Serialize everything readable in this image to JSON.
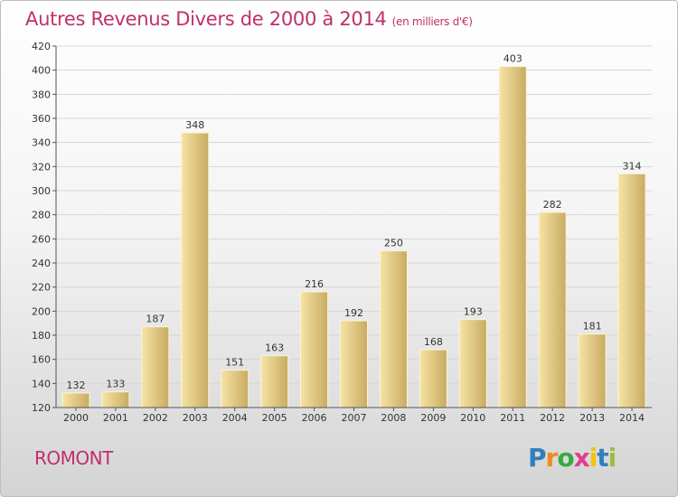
{
  "title": "Autres Revenus Divers de 2000 à 2014",
  "subtitle": "(en milliers d'€)",
  "place": "ROMONT",
  "logo": {
    "letters": [
      "P",
      "r",
      "o",
      "x",
      "i",
      "t",
      "i"
    ],
    "colors": [
      "#2f7fc0",
      "#f08a1c",
      "#3aa843",
      "#e23b8f",
      "#f5c400",
      "#2f7fc0",
      "#9bbf3a"
    ]
  },
  "colors": {
    "title": "#c0306a",
    "bar_light": "#f6e3a4",
    "bar_dark": "#c8ab62",
    "grid": "#d6d6d6",
    "axis_text": "#333333"
  },
  "chart_data": {
    "type": "bar",
    "categories": [
      "2000",
      "2001",
      "2002",
      "2003",
      "2004",
      "2005",
      "2006",
      "2007",
      "2008",
      "2009",
      "2010",
      "2011",
      "2012",
      "2013",
      "2014"
    ],
    "values": [
      132,
      133,
      187,
      348,
      151,
      163,
      216,
      192,
      250,
      168,
      193,
      403,
      282,
      181,
      314
    ],
    "ylim": [
      120,
      420
    ],
    "yticks": [
      120,
      140,
      160,
      180,
      200,
      220,
      240,
      260,
      280,
      300,
      320,
      340,
      360,
      380,
      400,
      420
    ],
    "grid": true,
    "data_labels": true
  }
}
